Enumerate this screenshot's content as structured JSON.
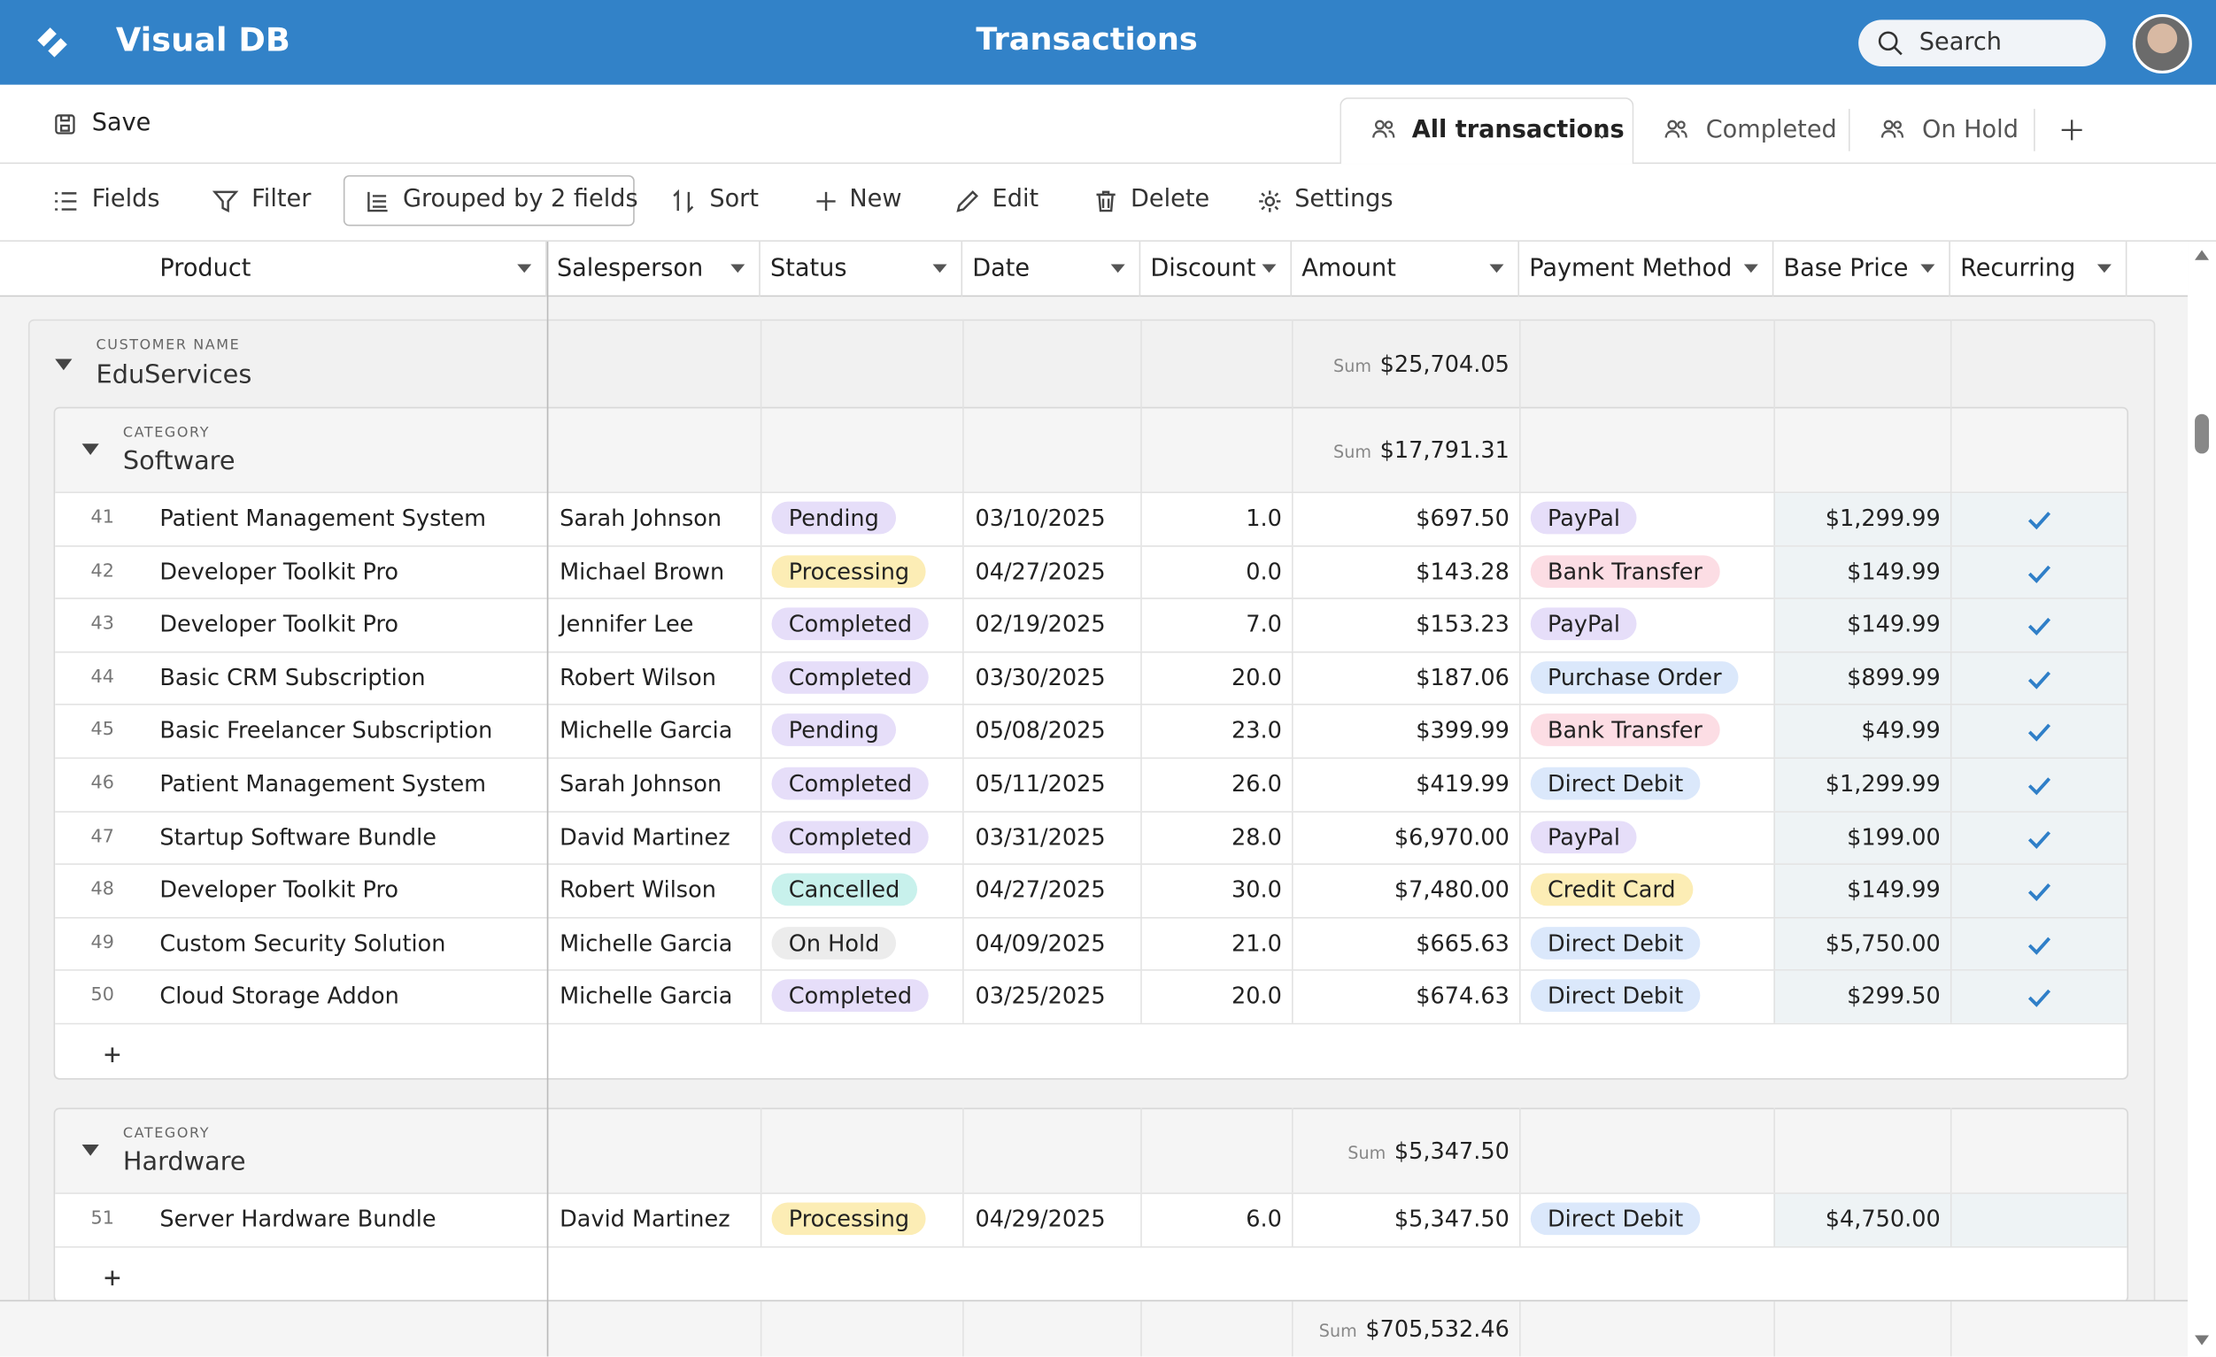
{
  "header": {
    "app_name": "Visual DB",
    "title": "Transactions",
    "search": "Search"
  },
  "toolbar": {
    "save": "Save",
    "views": [
      "All transactions",
      "Completed",
      "On Hold"
    ],
    "actions": [
      "Fields",
      "Filter",
      "Grouped by 2 fields",
      "Sort",
      "New",
      "Edit",
      "Delete",
      "Settings"
    ]
  },
  "columns": [
    "Product",
    "Salesperson",
    "Status",
    "Date",
    "Discount",
    "Amount",
    "Payment Method",
    "Base Price",
    "Recurring"
  ],
  "status_colors": {
    "Pending": "#e6def9",
    "Processing": "#fcedb5",
    "Completed": "#e6def9",
    "Cancelled": "#c8f1ec",
    "On Hold": "#ececec"
  },
  "payment_colors": {
    "PayPal": "#e6def9",
    "Bank Transfer": "#fcdde4",
    "Purchase Order": "#dbe8fb",
    "Direct Debit": "#dbe8fb",
    "Credit Card": "#fcedb5"
  },
  "groups": [
    {
      "label": "CUSTOMER NAME",
      "name": "EduServices",
      "sum_label": "Sum",
      "sum": "$25,704.05",
      "subgroups": [
        {
          "label": "CATEGORY",
          "name": "Software",
          "sum_label": "Sum",
          "sum": "$17,791.31",
          "rows": [
            {
              "id": "41",
              "product": "Patient Management System",
              "salesperson": "Sarah Johnson",
              "status": "Pending",
              "date": "03/10/2025",
              "discount": "1.0",
              "amount": "$697.50",
              "payment": "PayPal",
              "base_price": "$1,299.99",
              "recurring": true
            },
            {
              "id": "42",
              "product": "Developer Toolkit Pro",
              "salesperson": "Michael Brown",
              "status": "Processing",
              "date": "04/27/2025",
              "discount": "0.0",
              "amount": "$143.28",
              "payment": "Bank Transfer",
              "base_price": "$149.99",
              "recurring": true
            },
            {
              "id": "43",
              "product": "Developer Toolkit Pro",
              "salesperson": "Jennifer Lee",
              "status": "Completed",
              "date": "02/19/2025",
              "discount": "7.0",
              "amount": "$153.23",
              "payment": "PayPal",
              "base_price": "$149.99",
              "recurring": true
            },
            {
              "id": "44",
              "product": "Basic CRM Subscription",
              "salesperson": "Robert Wilson",
              "status": "Completed",
              "date": "03/30/2025",
              "discount": "20.0",
              "amount": "$187.06",
              "payment": "Purchase Order",
              "base_price": "$899.99",
              "recurring": true
            },
            {
              "id": "45",
              "product": "Basic Freelancer Subscription",
              "salesperson": "Michelle Garcia",
              "status": "Pending",
              "date": "05/08/2025",
              "discount": "23.0",
              "amount": "$399.99",
              "payment": "Bank Transfer",
              "base_price": "$49.99",
              "recurring": true
            },
            {
              "id": "46",
              "product": "Patient Management System",
              "salesperson": "Sarah Johnson",
              "status": "Completed",
              "date": "05/11/2025",
              "discount": "26.0",
              "amount": "$419.99",
              "payment": "Direct Debit",
              "base_price": "$1,299.99",
              "recurring": true
            },
            {
              "id": "47",
              "product": "Startup Software Bundle",
              "salesperson": "David Martinez",
              "status": "Completed",
              "date": "03/31/2025",
              "discount": "28.0",
              "amount": "$6,970.00",
              "payment": "PayPal",
              "base_price": "$199.00",
              "recurring": true
            },
            {
              "id": "48",
              "product": "Developer Toolkit Pro",
              "salesperson": "Robert Wilson",
              "status": "Cancelled",
              "date": "04/27/2025",
              "discount": "30.0",
              "amount": "$7,480.00",
              "payment": "Credit Card",
              "base_price": "$149.99",
              "recurring": true
            },
            {
              "id": "49",
              "product": "Custom Security Solution",
              "salesperson": "Michelle Garcia",
              "status": "On Hold",
              "date": "04/09/2025",
              "discount": "21.0",
              "amount": "$665.63",
              "payment": "Direct Debit",
              "base_price": "$5,750.00",
              "recurring": true
            },
            {
              "id": "50",
              "product": "Cloud Storage Addon",
              "salesperson": "Michelle Garcia",
              "status": "Completed",
              "date": "03/25/2025",
              "discount": "20.0",
              "amount": "$674.63",
              "payment": "Direct Debit",
              "base_price": "$299.50",
              "recurring": true
            }
          ]
        },
        {
          "label": "CATEGORY",
          "name": "Hardware",
          "sum_label": "Sum",
          "sum": "$5,347.50",
          "rows": [
            {
              "id": "51",
              "product": "Server Hardware Bundle",
              "salesperson": "David Martinez",
              "status": "Processing",
              "date": "04/29/2025",
              "discount": "6.0",
              "amount": "$5,347.50",
              "payment": "Direct Debit",
              "base_price": "$4,750.00",
              "recurring": false
            }
          ]
        }
      ]
    }
  ],
  "footer": {
    "sum_label": "Sum",
    "sum": "$705,532.46"
  }
}
